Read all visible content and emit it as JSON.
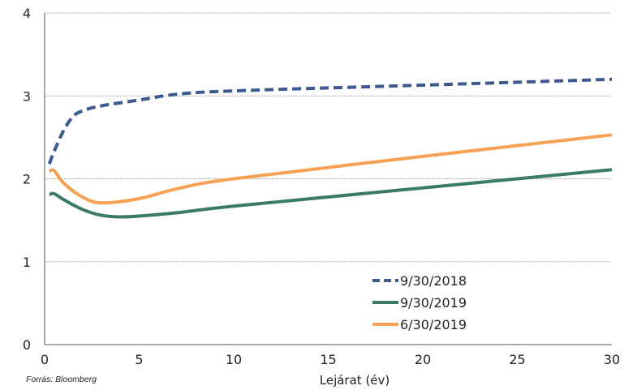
{
  "chart_data": {
    "type": "line",
    "title": "",
    "xlabel": "Lejárat (év)",
    "ylabel": "",
    "xlim": [
      0,
      30
    ],
    "ylim": [
      0,
      4
    ],
    "x_ticks": [
      0,
      5,
      10,
      15,
      20,
      25,
      30
    ],
    "y_ticks": [
      0,
      1,
      2,
      3,
      4
    ],
    "grid": "horizontal",
    "legend_position": "bottom-right",
    "source": "Forrás: Bloomberg",
    "series": [
      {
        "name": "9/30/2018",
        "color": "#3d5a8f",
        "style": "dashed",
        "points": [
          [
            0.25,
            2.18
          ],
          [
            0.5,
            2.33
          ],
          [
            1,
            2.58
          ],
          [
            1.5,
            2.75
          ],
          [
            2,
            2.82
          ],
          [
            3,
            2.88
          ],
          [
            5,
            2.95
          ],
          [
            7,
            3.02
          ],
          [
            10,
            3.06
          ],
          [
            20,
            3.13
          ],
          [
            30,
            3.2
          ]
        ]
      },
      {
        "name": "9/30/2019",
        "color": "#3a7a68",
        "style": "solid",
        "points": [
          [
            0.25,
            1.81
          ],
          [
            0.5,
            1.82
          ],
          [
            1,
            1.75
          ],
          [
            2,
            1.63
          ],
          [
            3,
            1.56
          ],
          [
            4,
            1.54
          ],
          [
            5,
            1.55
          ],
          [
            7,
            1.59
          ],
          [
            10,
            1.67
          ],
          [
            20,
            1.89
          ],
          [
            30,
            2.11
          ]
        ]
      },
      {
        "name": "6/30/2019",
        "color": "#f7a155",
        "style": "solid",
        "points": [
          [
            0.25,
            2.09
          ],
          [
            0.5,
            2.1
          ],
          [
            1,
            1.95
          ],
          [
            2,
            1.78
          ],
          [
            3,
            1.71
          ],
          [
            5,
            1.76
          ],
          [
            7,
            1.88
          ],
          [
            10,
            2.0
          ],
          [
            20,
            2.27
          ],
          [
            30,
            2.53
          ]
        ]
      }
    ]
  }
}
